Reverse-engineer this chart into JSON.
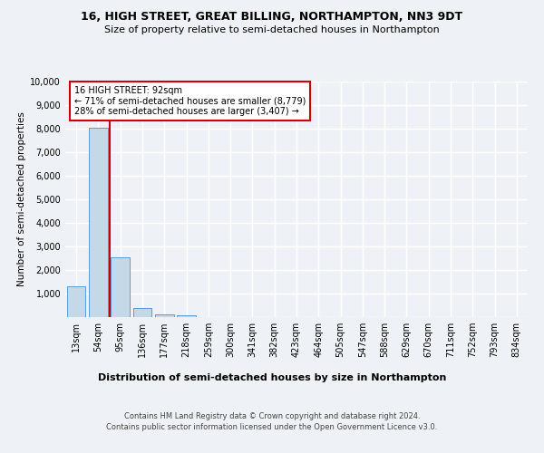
{
  "title": "16, HIGH STREET, GREAT BILLING, NORTHAMPTON, NN3 9DT",
  "subtitle": "Size of property relative to semi-detached houses in Northampton",
  "xlabel": "Distribution of semi-detached houses by size in Northampton",
  "ylabel": "Number of semi-detached properties",
  "categories": [
    "13sqm",
    "54sqm",
    "95sqm",
    "136sqm",
    "177sqm",
    "218sqm",
    "259sqm",
    "300sqm",
    "341sqm",
    "382sqm",
    "423sqm",
    "464sqm",
    "505sqm",
    "547sqm",
    "588sqm",
    "629sqm",
    "670sqm",
    "711sqm",
    "752sqm",
    "793sqm",
    "834sqm"
  ],
  "values": [
    1300,
    8050,
    2550,
    370,
    130,
    80,
    0,
    0,
    0,
    0,
    0,
    0,
    0,
    0,
    0,
    0,
    0,
    0,
    0,
    0,
    0
  ],
  "bar_color": "#c5d8e8",
  "bar_edge_color": "#5b9bd5",
  "vline_x": 1.5,
  "vline_color": "#cc0000",
  "ann_line1": "16 HIGH STREET: 92sqm",
  "ann_line2": "← 71% of semi-detached houses are smaller (8,779)",
  "ann_line3": "28% of semi-detached houses are larger (3,407) →",
  "ann_box_facecolor": "#ffffff",
  "ann_box_edgecolor": "#cc0000",
  "ylim": [
    0,
    10000
  ],
  "yticks": [
    0,
    1000,
    2000,
    3000,
    4000,
    5000,
    6000,
    7000,
    8000,
    9000,
    10000
  ],
  "footer_line1": "Contains HM Land Registry data © Crown copyright and database right 2024.",
  "footer_line2": "Contains public sector information licensed under the Open Government Licence v3.0.",
  "bg_color": "#eef2f7",
  "grid_color": "#ffffff",
  "title_fontsize": 9,
  "subtitle_fontsize": 8,
  "ylabel_fontsize": 7.5,
  "xlabel_fontsize": 8,
  "tick_fontsize": 7,
  "ann_fontsize": 7,
  "footer_fontsize": 6
}
